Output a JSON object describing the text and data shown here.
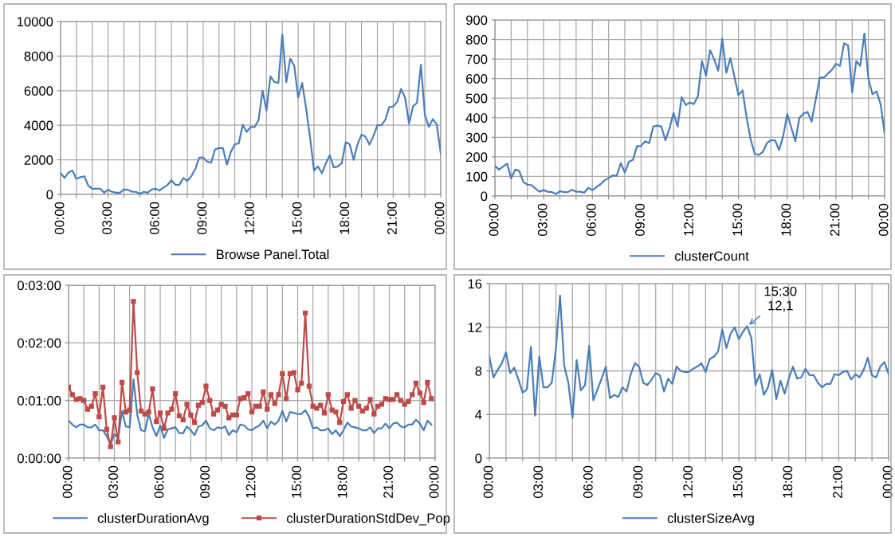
{
  "chart_data": [
    {
      "type": "line",
      "xlim": [
        0,
        24
      ],
      "xticks": [
        {
          "value": 0,
          "label": "00:00"
        },
        {
          "value": 1,
          "label": null
        },
        {
          "value": 2,
          "label": null
        },
        {
          "value": 3,
          "label": "03:00"
        },
        {
          "value": 4,
          "label": null
        },
        {
          "value": 5,
          "label": null
        },
        {
          "value": 6,
          "label": "06:00"
        },
        {
          "value": 7,
          "label": null
        },
        {
          "value": 8,
          "label": null
        },
        {
          "value": 9,
          "label": "09:00"
        },
        {
          "value": 10,
          "label": null
        },
        {
          "value": 11,
          "label": null
        },
        {
          "value": 12,
          "label": "12:00"
        },
        {
          "value": 13,
          "label": null
        },
        {
          "value": 14,
          "label": null
        },
        {
          "value": 15,
          "label": "15:00"
        },
        {
          "value": 16,
          "label": null
        },
        {
          "value": 17,
          "label": null
        },
        {
          "value": 18,
          "label": "18:00"
        },
        {
          "value": 19,
          "label": null
        },
        {
          "value": 20,
          "label": null
        },
        {
          "value": 21,
          "label": "21:00"
        },
        {
          "value": 22,
          "label": null
        },
        {
          "value": 23,
          "label": null
        },
        {
          "value": 24,
          "label": "00:00"
        }
      ],
      "ylim": [
        0,
        10000
      ],
      "yticks": [
        0,
        2000,
        4000,
        6000,
        8000,
        10000
      ],
      "grid": true,
      "legend": "bottom",
      "marker": "none",
      "line_style": "solid",
      "series": [
        {
          "name": "Browse Panel.Total",
          "color": "#4a7ebb",
          "x": [
            0,
            0.25,
            0.5,
            0.75,
            1,
            1.25,
            1.5,
            1.75,
            2,
            2.25,
            2.5,
            2.75,
            3,
            3.25,
            3.5,
            3.75,
            4,
            4.25,
            4.5,
            4.75,
            5,
            5.25,
            5.5,
            5.75,
            6,
            6.25,
            6.5,
            6.75,
            7,
            7.25,
            7.5,
            7.75,
            8,
            8.25,
            8.5,
            8.75,
            9,
            9.25,
            9.5,
            9.75,
            10,
            10.25,
            10.5,
            10.75,
            11,
            11.25,
            11.5,
            11.75,
            12,
            12.25,
            12.5,
            12.75,
            13,
            13.25,
            13.5,
            13.75,
            14,
            14.25,
            14.5,
            14.75,
            15,
            15.25,
            15.5,
            15.75,
            16,
            16.25,
            16.5,
            16.75,
            17,
            17.25,
            17.5,
            17.75,
            18,
            18.25,
            18.5,
            18.75,
            19,
            19.25,
            19.5,
            19.75,
            20,
            20.25,
            20.5,
            20.75,
            21,
            21.25,
            21.5,
            21.75,
            22,
            22.25,
            22.5,
            22.75,
            23,
            23.25,
            23.5,
            23.75,
            24
          ],
          "values": [
            1250,
            950,
            1270,
            1380,
            900,
            1000,
            1050,
            500,
            330,
            330,
            330,
            100,
            270,
            150,
            100,
            100,
            280,
            270,
            160,
            150,
            30,
            150,
            100,
            280,
            330,
            220,
            400,
            550,
            820,
            550,
            560,
            950,
            780,
            1050,
            1450,
            2130,
            2130,
            1900,
            1830,
            2600,
            2680,
            2680,
            1720,
            2450,
            2900,
            2950,
            4030,
            3620,
            3900,
            3900,
            4300,
            6000,
            4850,
            6830,
            6500,
            6450,
            9250,
            6500,
            7850,
            7450,
            5600,
            6450,
            5000,
            3300,
            1380,
            1620,
            1220,
            1800,
            2270,
            1560,
            1620,
            1800,
            3020,
            2900,
            2000,
            2900,
            3460,
            3340,
            2880,
            3370,
            4000,
            4000,
            4300,
            5050,
            5080,
            5350,
            6100,
            5600,
            4100,
            5080,
            5300,
            7500,
            4600,
            3900,
            4350,
            4050,
            2400
          ]
        }
      ]
    },
    {
      "type": "line",
      "xlim": [
        0,
        24
      ],
      "xticks": [
        {
          "value": 0,
          "label": "00:00"
        },
        {
          "value": 1,
          "label": null
        },
        {
          "value": 2,
          "label": null
        },
        {
          "value": 3,
          "label": "03:00"
        },
        {
          "value": 4,
          "label": null
        },
        {
          "value": 5,
          "label": null
        },
        {
          "value": 6,
          "label": "06:00"
        },
        {
          "value": 7,
          "label": null
        },
        {
          "value": 8,
          "label": null
        },
        {
          "value": 9,
          "label": "09:00"
        },
        {
          "value": 10,
          "label": null
        },
        {
          "value": 11,
          "label": null
        },
        {
          "value": 12,
          "label": "12:00"
        },
        {
          "value": 13,
          "label": null
        },
        {
          "value": 14,
          "label": null
        },
        {
          "value": 15,
          "label": "15:00"
        },
        {
          "value": 16,
          "label": null
        },
        {
          "value": 17,
          "label": null
        },
        {
          "value": 18,
          "label": "18:00"
        },
        {
          "value": 19,
          "label": null
        },
        {
          "value": 20,
          "label": null
        },
        {
          "value": 21,
          "label": "21:00"
        },
        {
          "value": 22,
          "label": null
        },
        {
          "value": 23,
          "label": null
        },
        {
          "value": 24,
          "label": "00:00"
        }
      ],
      "ylim": [
        0,
        900
      ],
      "yticks": [
        0,
        100,
        200,
        300,
        400,
        500,
        600,
        700,
        800,
        900
      ],
      "grid": true,
      "legend": "bottom",
      "marker": "none",
      "line_style": "solid",
      "series": [
        {
          "name": "clusterCount",
          "color": "#4a7ebb",
          "x": [
            0,
            0.25,
            0.5,
            0.75,
            1,
            1.25,
            1.5,
            1.75,
            2,
            2.25,
            2.5,
            2.75,
            3,
            3.25,
            3.5,
            3.75,
            4,
            4.25,
            4.5,
            4.75,
            5,
            5.25,
            5.5,
            5.75,
            6,
            6.25,
            6.5,
            6.75,
            7,
            7.25,
            7.5,
            7.75,
            8,
            8.25,
            8.5,
            8.75,
            9,
            9.25,
            9.5,
            9.75,
            10,
            10.25,
            10.5,
            10.75,
            11,
            11.25,
            11.5,
            11.75,
            12,
            12.25,
            12.5,
            12.75,
            13,
            13.25,
            13.5,
            13.75,
            14,
            14.25,
            14.5,
            14.75,
            15,
            15.25,
            15.5,
            15.75,
            16,
            16.25,
            16.5,
            16.75,
            17,
            17.25,
            17.5,
            17.75,
            18,
            18.25,
            18.5,
            18.75,
            19,
            19.25,
            19.5,
            19.75,
            20,
            20.25,
            20.5,
            20.75,
            21,
            21.25,
            21.5,
            21.75,
            22,
            22.25,
            22.5,
            22.75,
            23,
            23.25,
            23.5,
            23.75,
            24
          ],
          "values": [
            155,
            135,
            150,
            165,
            90,
            135,
            128,
            72,
            58,
            56,
            38,
            22,
            30,
            22,
            20,
            10,
            25,
            20,
            20,
            32,
            22,
            22,
            17,
            42,
            30,
            45,
            60,
            80,
            92,
            105,
            103,
            168,
            120,
            175,
            185,
            255,
            255,
            280,
            270,
            355,
            360,
            355,
            285,
            345,
            425,
            355,
            505,
            465,
            478,
            470,
            510,
            690,
            615,
            745,
            700,
            640,
            805,
            630,
            705,
            610,
            515,
            540,
            400,
            290,
            215,
            210,
            225,
            270,
            285,
            285,
            235,
            305,
            420,
            350,
            280,
            400,
            420,
            430,
            380,
            490,
            605,
            605,
            625,
            645,
            675,
            665,
            780,
            770,
            530,
            690,
            665,
            830,
            600,
            520,
            535,
            470,
            320
          ]
        }
      ]
    },
    {
      "type": "line",
      "xlim": [
        0,
        24
      ],
      "xticks": [
        {
          "value": 0,
          "label": "00:00"
        },
        {
          "value": 1,
          "label": null
        },
        {
          "value": 2,
          "label": null
        },
        {
          "value": 3,
          "label": "03:00"
        },
        {
          "value": 4,
          "label": null
        },
        {
          "value": 5,
          "label": null
        },
        {
          "value": 6,
          "label": "06:00"
        },
        {
          "value": 7,
          "label": null
        },
        {
          "value": 8,
          "label": null
        },
        {
          "value": 9,
          "label": "09:00"
        },
        {
          "value": 10,
          "label": null
        },
        {
          "value": 11,
          "label": null
        },
        {
          "value": 12,
          "label": "12:00"
        },
        {
          "value": 13,
          "label": null
        },
        {
          "value": 14,
          "label": null
        },
        {
          "value": 15,
          "label": "15:00"
        },
        {
          "value": 16,
          "label": null
        },
        {
          "value": 17,
          "label": null
        },
        {
          "value": 18,
          "label": "18:00"
        },
        {
          "value": 19,
          "label": null
        },
        {
          "value": 20,
          "label": null
        },
        {
          "value": 21,
          "label": "21:00"
        },
        {
          "value": 22,
          "label": null
        },
        {
          "value": 23,
          "label": null
        },
        {
          "value": 24,
          "label": "00:00"
        }
      ],
      "ylim": [
        0,
        180
      ],
      "yticks": [
        {
          "value": 0,
          "label": "0:00:00"
        },
        {
          "value": 60,
          "label": "0:01:00"
        },
        {
          "value": 120,
          "label": "0:02:00"
        },
        {
          "value": 180,
          "label": "0:03:00"
        }
      ],
      "grid": true,
      "legend": "bottom",
      "line_style": "solid",
      "series": [
        {
          "name": "clusterDurationAvg",
          "color": "#4a7ebb",
          "marker": "none",
          "x": [
            0,
            0.25,
            0.5,
            0.75,
            1,
            1.25,
            1.5,
            1.75,
            2,
            2.25,
            2.5,
            2.75,
            3,
            3.25,
            3.5,
            3.75,
            4,
            4.25,
            4.5,
            4.75,
            5,
            5.25,
            5.5,
            5.75,
            6,
            6.25,
            6.5,
            6.75,
            7,
            7.25,
            7.5,
            7.75,
            8,
            8.25,
            8.5,
            8.75,
            9,
            9.25,
            9.5,
            9.75,
            10,
            10.25,
            10.5,
            10.75,
            11,
            11.25,
            11.5,
            11.75,
            12,
            12.25,
            12.5,
            12.75,
            13,
            13.25,
            13.5,
            13.75,
            14,
            14.25,
            14.5,
            14.75,
            15,
            15.25,
            15.5,
            15.75,
            16,
            16.25,
            16.5,
            16.75,
            17,
            17.25,
            17.5,
            17.75,
            18,
            18.25,
            18.5,
            18.75,
            19,
            19.25,
            19.5,
            19.75,
            20,
            20.25,
            20.5,
            20.75,
            21,
            21.25,
            21.5,
            21.75,
            22,
            22.25,
            22.5,
            22.75,
            23,
            23.25,
            23.5,
            23.75
          ],
          "values": [
            39,
            35,
            32,
            35,
            35,
            32,
            32,
            35,
            29,
            29,
            23,
            14,
            25,
            21,
            49,
            33,
            32,
            82,
            45,
            29,
            28,
            46,
            32,
            23,
            34,
            21,
            30,
            31,
            32,
            26,
            26,
            33,
            29,
            24,
            33,
            34,
            39,
            31,
            29,
            32,
            31,
            33,
            24,
            29,
            27,
            35,
            34,
            30,
            29,
            32,
            34,
            39,
            31,
            38,
            35,
            39,
            49,
            38,
            48,
            47,
            46,
            46,
            50,
            43,
            31,
            32,
            29,
            29,
            31,
            25,
            29,
            23,
            29,
            37,
            33,
            32,
            31,
            29,
            29,
            32,
            26,
            31,
            31,
            36,
            31,
            36,
            37,
            33,
            32,
            35,
            35,
            40,
            36,
            29,
            39,
            35
          ]
        },
        {
          "name": "clusterDurationStdDev_Pop",
          "color": "#be4b48",
          "marker": "square",
          "x": [
            0,
            0.25,
            0.5,
            0.75,
            1,
            1.25,
            1.5,
            1.75,
            2,
            2.25,
            2.5,
            2.75,
            3,
            3.25,
            3.5,
            3.75,
            4,
            4.25,
            4.5,
            4.75,
            5,
            5.25,
            5.5,
            5.75,
            6,
            6.25,
            6.5,
            6.75,
            7,
            7.25,
            7.5,
            7.75,
            8,
            8.25,
            8.5,
            8.75,
            9,
            9.25,
            9.5,
            9.75,
            10,
            10.25,
            10.5,
            10.75,
            11,
            11.25,
            11.5,
            11.75,
            12,
            12.25,
            12.5,
            12.75,
            13,
            13.25,
            13.5,
            13.75,
            14,
            14.25,
            14.5,
            14.75,
            15,
            15.25,
            15.5,
            15.75,
            16,
            16.25,
            16.5,
            16.75,
            17,
            17.25,
            17.5,
            17.75,
            18,
            18.25,
            18.5,
            18.75,
            19,
            19.25,
            19.5,
            19.75,
            20,
            20.25,
            20.5,
            20.75,
            21,
            21.25,
            21.5,
            21.75,
            22,
            22.25,
            22.5,
            22.75,
            23,
            23.25,
            23.5,
            23.75
          ],
          "values": [
            74,
            66,
            61,
            62,
            60,
            51,
            54,
            67,
            43,
            74,
            30,
            12,
            42,
            17,
            79,
            48,
            50,
            163,
            89,
            49,
            46,
            48,
            72,
            38,
            47,
            31,
            47,
            51,
            67,
            44,
            40,
            56,
            45,
            37,
            55,
            58,
            75,
            60,
            46,
            50,
            56,
            54,
            42,
            45,
            45,
            62,
            63,
            67,
            48,
            54,
            54,
            69,
            51,
            66,
            57,
            66,
            88,
            62,
            88,
            89,
            71,
            78,
            151,
            75,
            54,
            52,
            55,
            47,
            66,
            50,
            48,
            37,
            59,
            66,
            52,
            60,
            54,
            49,
            52,
            61,
            46,
            54,
            56,
            62,
            61,
            61,
            66,
            60,
            56,
            59,
            66,
            78,
            68,
            58,
            79,
            62
          ]
        }
      ]
    },
    {
      "type": "line",
      "xlim": [
        0,
        24
      ],
      "xticks": [
        {
          "value": 0,
          "label": "00:00"
        },
        {
          "value": 1,
          "label": null
        },
        {
          "value": 2,
          "label": null
        },
        {
          "value": 3,
          "label": "03:00"
        },
        {
          "value": 4,
          "label": null
        },
        {
          "value": 5,
          "label": null
        },
        {
          "value": 6,
          "label": "06:00"
        },
        {
          "value": 7,
          "label": null
        },
        {
          "value": 8,
          "label": null
        },
        {
          "value": 9,
          "label": "09:00"
        },
        {
          "value": 10,
          "label": null
        },
        {
          "value": 11,
          "label": null
        },
        {
          "value": 12,
          "label": "12:00"
        },
        {
          "value": 13,
          "label": null
        },
        {
          "value": 14,
          "label": null
        },
        {
          "value": 15,
          "label": "15:00"
        },
        {
          "value": 16,
          "label": null
        },
        {
          "value": 17,
          "label": null
        },
        {
          "value": 18,
          "label": "18:00"
        },
        {
          "value": 19,
          "label": null
        },
        {
          "value": 20,
          "label": null
        },
        {
          "value": 21,
          "label": "21:00"
        },
        {
          "value": 22,
          "label": null
        },
        {
          "value": 23,
          "label": null
        },
        {
          "value": 24,
          "label": "00:00"
        }
      ],
      "ylim": [
        0,
        16
      ],
      "yticks": [
        0,
        4,
        8,
        12,
        16
      ],
      "grid": true,
      "legend": "bottom",
      "marker": "none",
      "line_style": "solid",
      "annotations": [
        {
          "text": "15:30\n12,1",
          "x": 15.5,
          "y": 12.1
        }
      ],
      "series": [
        {
          "name": "clusterSizeAvg",
          "color": "#4a7ebb",
          "x": [
            0,
            0.25,
            0.5,
            0.75,
            1,
            1.25,
            1.5,
            1.75,
            2,
            2.25,
            2.5,
            2.75,
            3,
            3.25,
            3.5,
            3.75,
            4,
            4.25,
            4.5,
            4.75,
            5,
            5.25,
            5.5,
            5.75,
            6,
            6.25,
            6.5,
            6.75,
            7,
            7.25,
            7.5,
            7.75,
            8,
            8.25,
            8.5,
            8.75,
            9,
            9.25,
            9.5,
            9.75,
            10,
            10.25,
            10.5,
            10.75,
            11,
            11.25,
            11.5,
            11.75,
            12,
            12.25,
            12.5,
            12.75,
            13,
            13.25,
            13.5,
            13.75,
            14,
            14.25,
            14.5,
            14.75,
            15,
            15.25,
            15.5,
            15.75,
            16,
            16.25,
            16.5,
            16.75,
            17,
            17.25,
            17.5,
            17.75,
            18,
            18.25,
            18.5,
            18.75,
            19,
            19.25,
            19.5,
            19.75,
            20,
            20.25,
            20.5,
            20.75,
            21,
            21.25,
            21.5,
            21.75,
            22,
            22.25,
            22.5,
            22.75,
            23,
            23.25,
            23.5,
            23.75,
            24
          ],
          "values": [
            9.3,
            7.4,
            8.1,
            8.7,
            9.7,
            7.8,
            8.3,
            7.2,
            6.0,
            6.3,
            10.2,
            3.9,
            9.3,
            6.5,
            6.5,
            6.9,
            10.0,
            14.9,
            8.5,
            6.9,
            3.7,
            9.0,
            6.2,
            6.7,
            10.3,
            5.3,
            6.3,
            7.3,
            8.4,
            5.5,
            5.8,
            5.6,
            6.5,
            6.1,
            7.7,
            8.7,
            8.4,
            6.9,
            6.7,
            7.2,
            7.8,
            7.6,
            6.1,
            7.3,
            6.8,
            8.4,
            8.0,
            7.9,
            7.9,
            8.2,
            8.4,
            8.7,
            7.9,
            9.1,
            9.3,
            9.8,
            11.8,
            10.1,
            11.4,
            12.0,
            10.9,
            11.6,
            12.1,
            11.0,
            6.7,
            7.7,
            5.8,
            6.5,
            8.1,
            5.4,
            7.1,
            5.9,
            7.3,
            8.4,
            7.3,
            7.4,
            8.2,
            7.6,
            7.6,
            6.9,
            6.5,
            6.8,
            6.8,
            7.7,
            7.6,
            7.9,
            8.0,
            7.2,
            7.7,
            7.4,
            8.1,
            9.2,
            7.6,
            7.4,
            8.4,
            8.8,
            7.7
          ]
        }
      ]
    }
  ]
}
